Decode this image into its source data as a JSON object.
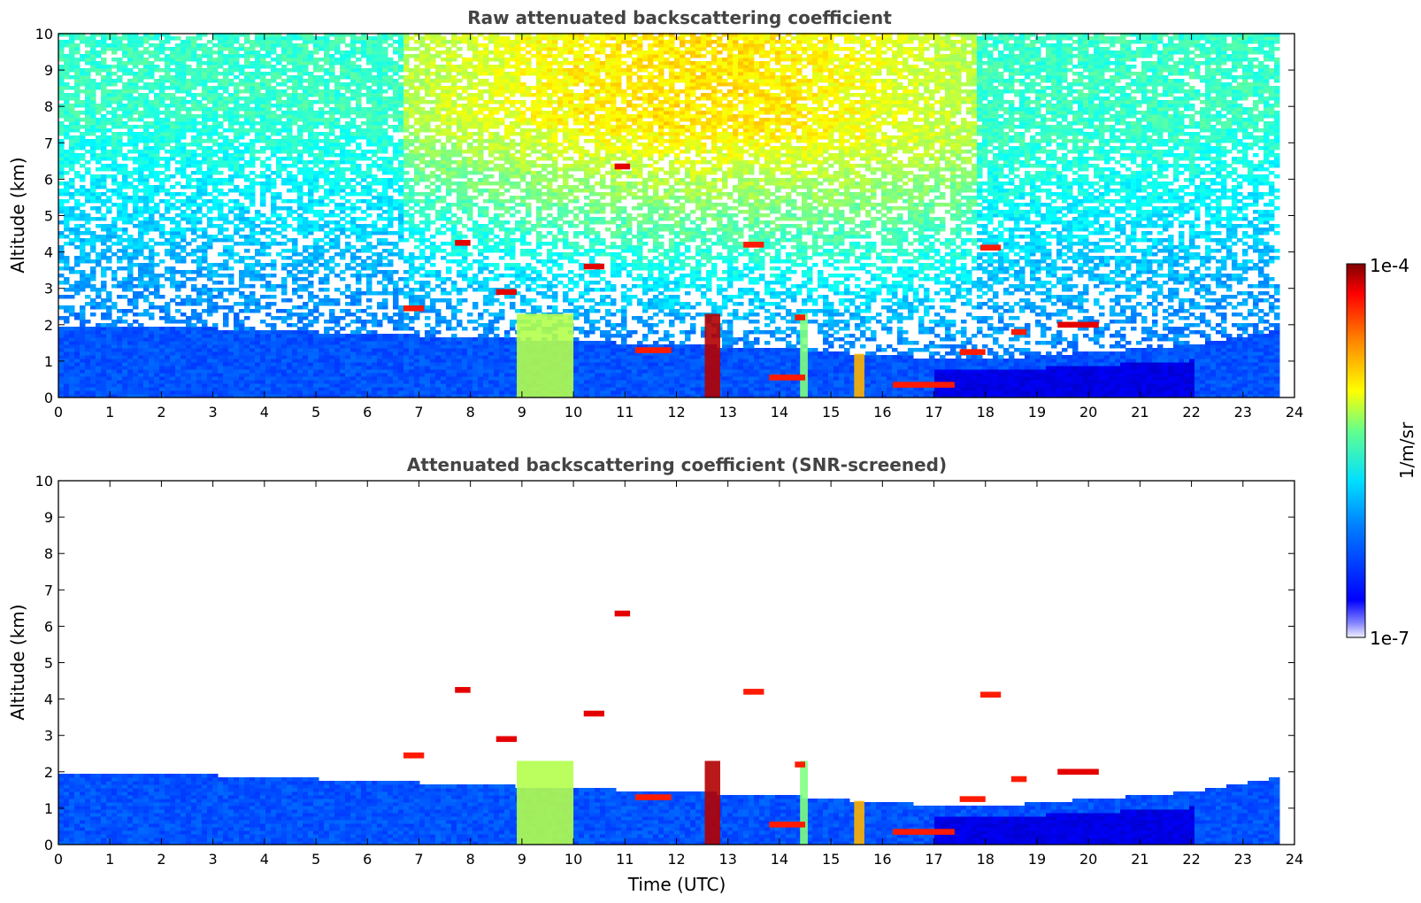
{
  "chart_data": [
    {
      "type": "heatmap",
      "title": "Raw attenuated backscattering coefficient",
      "xlabel": "",
      "ylabel": "Altitude (km)",
      "xlim": [
        0,
        24
      ],
      "ylim": [
        0,
        10
      ],
      "xticks": [
        0,
        1,
        2,
        3,
        4,
        5,
        6,
        7,
        8,
        9,
        10,
        11,
        12,
        13,
        14,
        15,
        16,
        17,
        18,
        19,
        20,
        21,
        22,
        23,
        24
      ],
      "yticks": [
        0,
        1,
        2,
        3,
        4,
        5,
        6,
        7,
        8,
        9,
        10
      ],
      "data_end_time": 23.7,
      "boundary_layer_top_km": [
        [
          0,
          1.9
        ],
        [
          2,
          1.9
        ],
        [
          4,
          1.8
        ],
        [
          6,
          1.7
        ],
        [
          8,
          1.6
        ],
        [
          10,
          1.5
        ],
        [
          12,
          1.4
        ],
        [
          14,
          1.3
        ],
        [
          16,
          1.1
        ],
        [
          18,
          1.0
        ],
        [
          20,
          1.2
        ],
        [
          22,
          1.4
        ],
        [
          23.7,
          1.8
        ]
      ],
      "features": [
        {
          "kind": "precipitation",
          "t0": 8.9,
          "t1": 10.0,
          "z0": 0,
          "z1": 2.3,
          "level": 0.55
        },
        {
          "kind": "precipitation",
          "t0": 12.55,
          "t1": 12.85,
          "z0": 0,
          "z1": 2.3,
          "level": 0.95
        },
        {
          "kind": "precipitation",
          "t0": 14.4,
          "t1": 14.55,
          "z0": 0,
          "z1": 2.3,
          "level": 0.5
        },
        {
          "kind": "precipitation",
          "t0": 15.45,
          "t1": 15.65,
          "z0": 0,
          "z1": 1.2,
          "level": 0.7
        },
        {
          "kind": "cloud",
          "t0": 7.7,
          "t1": 8.0,
          "z": 4.25,
          "level": 0.9
        },
        {
          "kind": "cloud",
          "t0": 10.8,
          "t1": 11.1,
          "z": 6.35,
          "level": 0.9
        },
        {
          "kind": "cloud",
          "t0": 10.2,
          "t1": 10.6,
          "z": 3.6,
          "level": 0.9
        },
        {
          "kind": "cloud",
          "t0": 8.5,
          "t1": 8.9,
          "z": 2.9,
          "level": 0.9
        },
        {
          "kind": "cloud",
          "t0": 6.7,
          "t1": 7.1,
          "z": 2.45,
          "level": 0.85
        },
        {
          "kind": "cloud",
          "t0": 11.2,
          "t1": 11.9,
          "z": 1.3,
          "level": 0.85
        },
        {
          "kind": "cloud",
          "t0": 13.3,
          "t1": 13.7,
          "z": 4.2,
          "level": 0.85
        },
        {
          "kind": "cloud",
          "t0": 14.3,
          "t1": 14.5,
          "z": 2.2,
          "level": 0.85
        },
        {
          "kind": "cloud",
          "t0": 16.2,
          "t1": 17.4,
          "z": 0.35,
          "level": 0.85
        },
        {
          "kind": "cloud",
          "t0": 17.5,
          "t1": 18.0,
          "z": 1.25,
          "level": 0.85
        },
        {
          "kind": "cloud",
          "t0": 17.9,
          "t1": 18.3,
          "z": 4.12,
          "level": 0.85
        },
        {
          "kind": "cloud",
          "t0": 18.5,
          "t1": 18.8,
          "z": 1.8,
          "level": 0.85
        },
        {
          "kind": "cloud",
          "t0": 19.4,
          "t1": 20.2,
          "z": 2.0,
          "level": 0.9
        },
        {
          "kind": "cloud",
          "t0": 13.8,
          "t1": 14.5,
          "z": 0.55,
          "level": 0.85
        }
      ]
    },
    {
      "type": "heatmap",
      "title": "Attenuated backscattering coefficient (SNR-screened)",
      "xlabel": "Time (UTC)",
      "ylabel": "Altitude (km)",
      "xlim": [
        0,
        24
      ],
      "ylim": [
        0,
        10
      ],
      "xticks": [
        0,
        1,
        2,
        3,
        4,
        5,
        6,
        7,
        8,
        9,
        10,
        11,
        12,
        13,
        14,
        15,
        16,
        17,
        18,
        19,
        20,
        21,
        22,
        23,
        24
      ],
      "yticks": [
        0,
        1,
        2,
        3,
        4,
        5,
        6,
        7,
        8,
        9,
        10
      ],
      "data_end_time": 23.7,
      "screened": true
    }
  ],
  "colorbar": {
    "label": "1/m/sr",
    "max_label": "1e-4",
    "min_label": "1e-7",
    "colormap": "jet"
  }
}
